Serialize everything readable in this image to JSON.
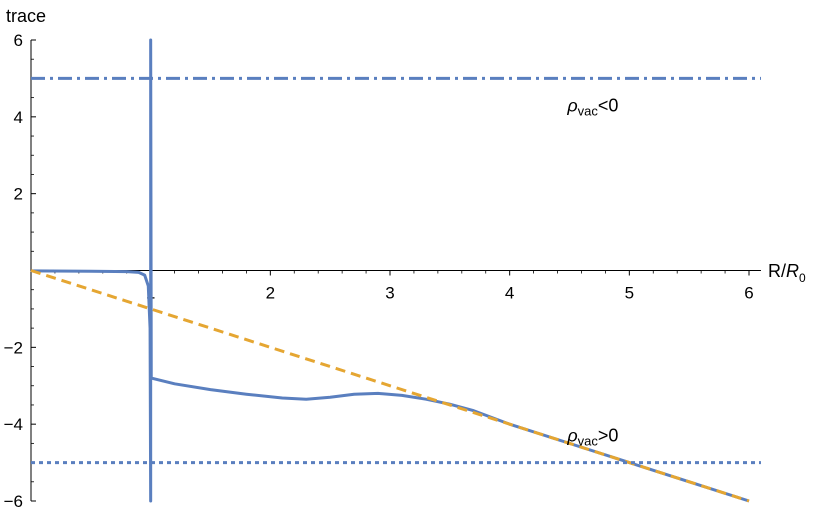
{
  "chart_data": {
    "type": "line",
    "title": "",
    "xlabel": "R/R₀",
    "ylabel": "trace",
    "xlim": [
      0,
      6.1
    ],
    "ylim": [
      -6,
      6
    ],
    "x_ticks": [
      1,
      2,
      3,
      4,
      5,
      6
    ],
    "y_ticks": [
      -6,
      -4,
      -2,
      2,
      4,
      6
    ],
    "grid": false,
    "legend": "none",
    "series": [
      {
        "style": "solid",
        "color": "#5a7fbf",
        "points": [
          [
            0.0,
            -0.01
          ],
          [
            0.5,
            -0.02
          ],
          [
            0.8,
            -0.03
          ],
          [
            0.9,
            -0.05
          ],
          [
            0.95,
            -0.12
          ],
          [
            0.98,
            -0.4
          ],
          [
            0.995,
            -1.5
          ],
          [
            1.0,
            -6
          ],
          [
            1.0,
            6
          ],
          [
            1.005,
            -2.8
          ],
          [
            1.2,
            -2.95
          ],
          [
            1.5,
            -3.1
          ],
          [
            1.8,
            -3.22
          ],
          [
            2.1,
            -3.32
          ],
          [
            2.3,
            -3.35
          ],
          [
            2.5,
            -3.3
          ],
          [
            2.7,
            -3.22
          ],
          [
            2.9,
            -3.2
          ],
          [
            3.1,
            -3.25
          ],
          [
            3.3,
            -3.35
          ],
          [
            3.5,
            -3.48
          ],
          [
            3.7,
            -3.65
          ],
          [
            4.0,
            -4.0
          ],
          [
            4.5,
            -4.5
          ],
          [
            5.0,
            -5.0
          ],
          [
            5.5,
            -5.5
          ],
          [
            6.0,
            -6.0
          ]
        ]
      },
      {
        "style": "dashed",
        "color": "#e5a632",
        "points": [
          [
            0,
            0
          ],
          [
            6,
            -6
          ]
        ]
      },
      {
        "style": "dash-dot",
        "color": "#5a7fbf",
        "points": [
          [
            0,
            5
          ],
          [
            6.1,
            5
          ]
        ]
      },
      {
        "style": "dotted",
        "color": "#5a7fbf",
        "points": [
          [
            0,
            -5
          ],
          [
            6.1,
            -5
          ]
        ]
      }
    ],
    "annotations": [
      {
        "text_base": "ρ",
        "text_sub": "vac",
        "text_rest": "<0",
        "x": 4.9,
        "y": 4.3
      },
      {
        "text_base": "ρ",
        "text_sub": "vac",
        "text_rest": ">0",
        "x": 4.9,
        "y": -4.3
      }
    ]
  }
}
